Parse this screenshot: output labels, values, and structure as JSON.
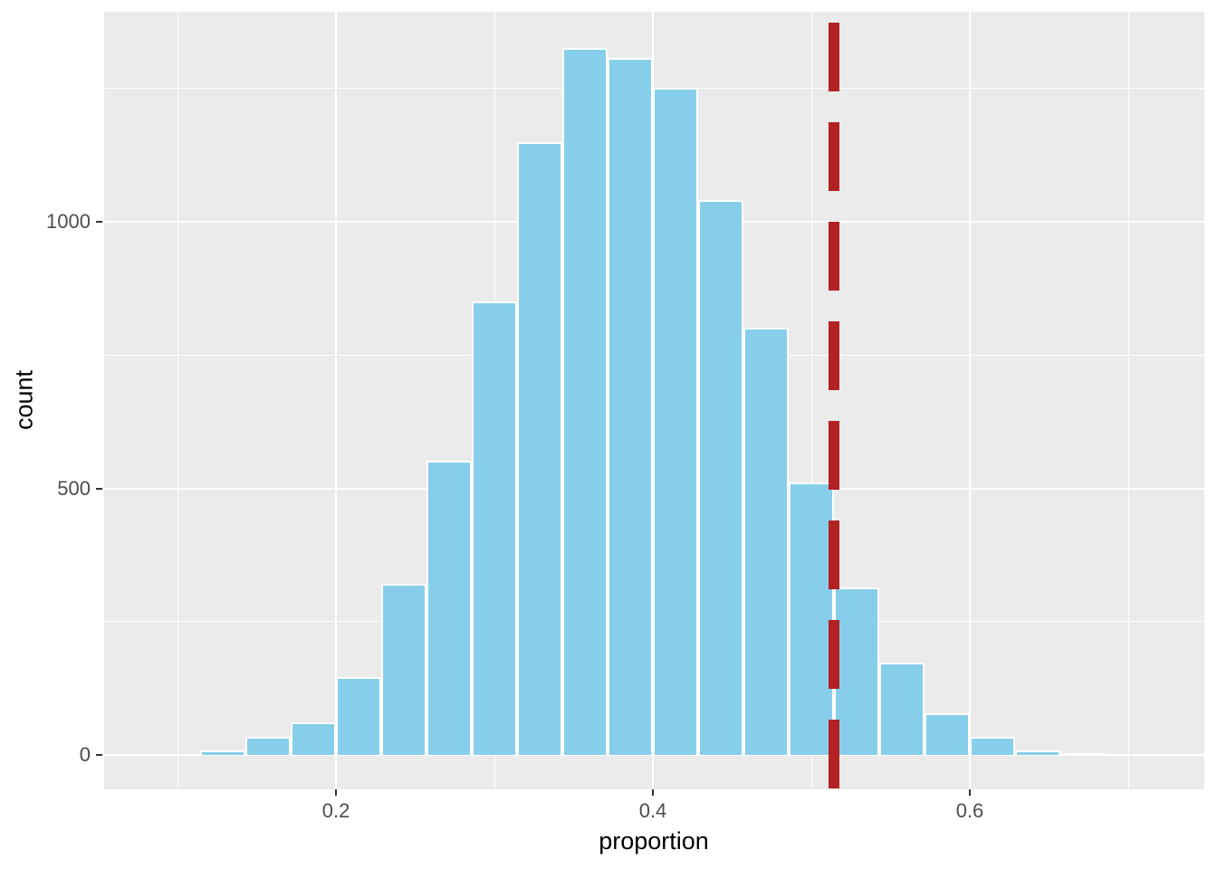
{
  "figure": {
    "background": "#FFFFFF",
    "panel_background": "#EBEBEB",
    "grid_color": "#FFFFFF",
    "tick_label_color": "#4D4D4D",
    "tick_mark_color": "#333333",
    "axis_title_color": "#000000"
  },
  "chart_data": {
    "type": "bar",
    "subtype": "histogram",
    "title": "",
    "xlabel": "proportion",
    "ylabel": "count",
    "bar_fill": "#87CEEB",
    "bar_stroke": "#FFFFFF",
    "bin_edges": [
      0.1143,
      0.1429,
      0.1714,
      0.2,
      0.2286,
      0.2571,
      0.2857,
      0.3143,
      0.3429,
      0.3714,
      0.4,
      0.4286,
      0.4571,
      0.4857,
      0.5143,
      0.5429,
      0.5714,
      0.6,
      0.6286,
      0.6571,
      0.6857
    ],
    "counts": [
      8,
      34,
      61,
      146,
      321,
      552,
      850,
      1150,
      1326,
      1307,
      1251,
      1041,
      801,
      511,
      314,
      173,
      78,
      34,
      8,
      4
    ],
    "vline": {
      "x": 0.5143,
      "color": "#B22222",
      "style": "dashed"
    },
    "x_domain": [
      0.0537,
      0.748
    ],
    "y_domain": [
      -64.5,
      1393.9
    ],
    "x_ticks": [
      {
        "value": 0.2,
        "label": "0.2"
      },
      {
        "value": 0.4,
        "label": "0.4"
      },
      {
        "value": 0.6,
        "label": "0.6"
      }
    ],
    "y_ticks": [
      {
        "value": 0,
        "label": "0"
      },
      {
        "value": 500,
        "label": "500"
      },
      {
        "value": 1000,
        "label": "1000"
      }
    ],
    "x_minor_ticks": [
      0.1,
      0.3,
      0.5,
      0.7
    ],
    "y_minor_ticks": [
      250,
      750,
      1250
    ],
    "grid": true,
    "legend": "none"
  }
}
